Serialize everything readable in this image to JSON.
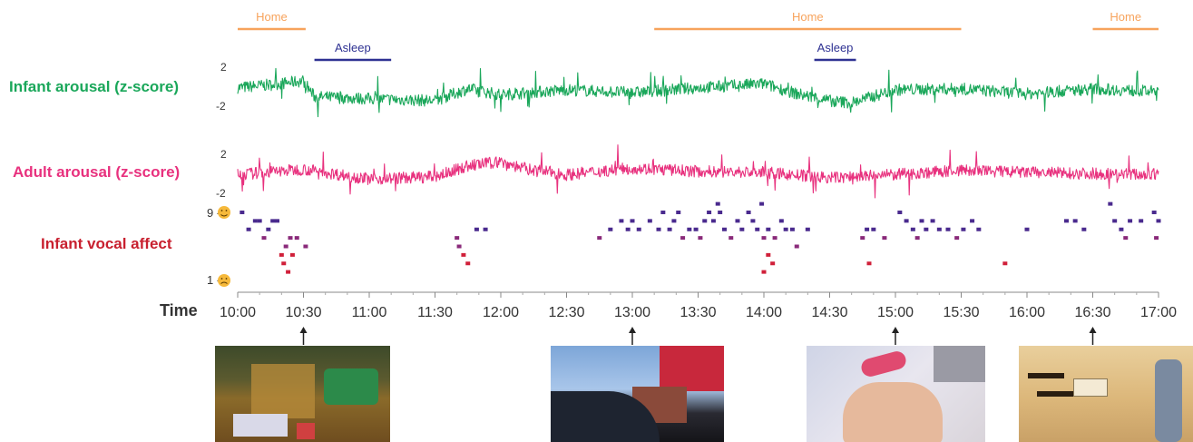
{
  "chart_data": {
    "type": "line",
    "x_range": [
      "10:00",
      "17:00"
    ],
    "xlabel": "Time",
    "x_ticks": [
      "10:00",
      "10:30",
      "11:00",
      "11:30",
      "12:00",
      "12:30",
      "13:00",
      "13:30",
      "14:00",
      "14:30",
      "15:00",
      "15:30",
      "16:00",
      "16:30",
      "17:00"
    ],
    "context_bars": [
      {
        "label": "Home",
        "start": "10:00",
        "end": "10:31",
        "color": "#f7a35c"
      },
      {
        "label": "Asleep",
        "start": "10:35",
        "end": "11:10",
        "color": "#2e3192"
      },
      {
        "label": "Home",
        "start": "13:10",
        "end": "15:30",
        "color": "#f7a35c"
      },
      {
        "label": "Asleep",
        "start": "14:23",
        "end": "14:42",
        "color": "#2e3192"
      },
      {
        "label": "Home",
        "start": "16:30",
        "end": "17:00",
        "color": "#f7a35c"
      }
    ],
    "series": [
      {
        "name": "Infant arousal (z-score)",
        "color": "#1aa75a",
        "y_ticks": [
          "2",
          "-2"
        ],
        "ylim": [
          -2,
          2
        ],
        "x": [
          "10:00",
          "10:15",
          "10:30",
          "10:35",
          "11:00",
          "11:30",
          "11:45",
          "12:00",
          "12:30",
          "13:00",
          "13:30",
          "14:00",
          "14:15",
          "14:30",
          "14:40",
          "15:00",
          "15:30",
          "16:00",
          "16:30",
          "17:00"
        ],
        "values": [
          0.3,
          0.6,
          1.0,
          -0.6,
          -0.8,
          -1.0,
          0.2,
          -0.4,
          0.1,
          -0.2,
          0.3,
          0.7,
          -0.3,
          -1.0,
          -1.2,
          0.1,
          0.2,
          -0.3,
          0.2,
          -0.1
        ]
      },
      {
        "name": "Adult arousal (z-score)",
        "color": "#e8317e",
        "y_ticks": [
          "2",
          "-2"
        ],
        "ylim": [
          -2,
          2
        ],
        "x": [
          "10:00",
          "10:30",
          "11:00",
          "11:30",
          "11:45",
          "12:00",
          "12:10",
          "12:30",
          "13:00",
          "13:30",
          "14:00",
          "14:30",
          "15:00",
          "15:30",
          "16:00",
          "16:30",
          "17:00"
        ],
        "values": [
          -0.2,
          0.3,
          -0.6,
          -0.4,
          0.6,
          1.0,
          0.4,
          -0.2,
          0.4,
          0.1,
          0.0,
          -0.5,
          -0.2,
          0.2,
          0.0,
          -0.1,
          -0.2
        ]
      }
    ],
    "vocal_affect": {
      "name": "Infant vocal affect",
      "y_ticks": [
        "9 -",
        "1 -"
      ],
      "ylim": [
        1,
        9
      ],
      "points": [
        {
          "t": "10:02",
          "v": 9
        },
        {
          "t": "10:05",
          "v": 7
        },
        {
          "t": "10:08",
          "v": 8
        },
        {
          "t": "10:10",
          "v": 8
        },
        {
          "t": "10:12",
          "v": 6
        },
        {
          "t": "10:14",
          "v": 7
        },
        {
          "t": "10:16",
          "v": 8
        },
        {
          "t": "10:18",
          "v": 8
        },
        {
          "t": "10:20",
          "v": 4
        },
        {
          "t": "10:22",
          "v": 5
        },
        {
          "t": "10:24",
          "v": 6
        },
        {
          "t": "10:27",
          "v": 6
        },
        {
          "t": "10:21",
          "v": 3
        },
        {
          "t": "10:23",
          "v": 2
        },
        {
          "t": "10:25",
          "v": 4
        },
        {
          "t": "10:31",
          "v": 5
        },
        {
          "t": "11:40",
          "v": 6
        },
        {
          "t": "11:41",
          "v": 5
        },
        {
          "t": "11:43",
          "v": 4
        },
        {
          "t": "11:45",
          "v": 3
        },
        {
          "t": "11:49",
          "v": 7
        },
        {
          "t": "11:53",
          "v": 7
        },
        {
          "t": "12:45",
          "v": 6
        },
        {
          "t": "12:50",
          "v": 7
        },
        {
          "t": "12:55",
          "v": 8
        },
        {
          "t": "12:58",
          "v": 7
        },
        {
          "t": "13:00",
          "v": 8
        },
        {
          "t": "13:03",
          "v": 7
        },
        {
          "t": "13:08",
          "v": 8
        },
        {
          "t": "13:12",
          "v": 7
        },
        {
          "t": "13:14",
          "v": 9
        },
        {
          "t": "13:17",
          "v": 7
        },
        {
          "t": "13:19",
          "v": 8
        },
        {
          "t": "13:21",
          "v": 9
        },
        {
          "t": "13:23",
          "v": 6
        },
        {
          "t": "13:26",
          "v": 7
        },
        {
          "t": "13:29",
          "v": 7
        },
        {
          "t": "13:31",
          "v": 6
        },
        {
          "t": "13:33",
          "v": 8
        },
        {
          "t": "13:35",
          "v": 9
        },
        {
          "t": "13:37",
          "v": 8
        },
        {
          "t": "13:39",
          "v": 10
        },
        {
          "t": "13:40",
          "v": 9
        },
        {
          "t": "13:42",
          "v": 7
        },
        {
          "t": "13:45",
          "v": 6
        },
        {
          "t": "13:48",
          "v": 8
        },
        {
          "t": "13:50",
          "v": 7
        },
        {
          "t": "13:53",
          "v": 9
        },
        {
          "t": "13:55",
          "v": 8
        },
        {
          "t": "13:57",
          "v": 7
        },
        {
          "t": "13:59",
          "v": 10
        },
        {
          "t": "14:00",
          "v": 6
        },
        {
          "t": "14:02",
          "v": 7
        },
        {
          "t": "14:05",
          "v": 6
        },
        {
          "t": "14:08",
          "v": 8
        },
        {
          "t": "14:10",
          "v": 7
        },
        {
          "t": "14:13",
          "v": 7
        },
        {
          "t": "14:15",
          "v": 5
        },
        {
          "t": "14:20",
          "v": 7
        },
        {
          "t": "14:00",
          "v": 2
        },
        {
          "t": "14:02",
          "v": 4
        },
        {
          "t": "14:04",
          "v": 3
        },
        {
          "t": "14:45",
          "v": 6
        },
        {
          "t": "14:47",
          "v": 7
        },
        {
          "t": "14:50",
          "v": 7
        },
        {
          "t": "14:48",
          "v": 3
        },
        {
          "t": "14:55",
          "v": 6
        },
        {
          "t": "15:02",
          "v": 9
        },
        {
          "t": "15:05",
          "v": 8
        },
        {
          "t": "15:08",
          "v": 7
        },
        {
          "t": "15:10",
          "v": 6
        },
        {
          "t": "15:12",
          "v": 8
        },
        {
          "t": "15:14",
          "v": 7
        },
        {
          "t": "15:17",
          "v": 8
        },
        {
          "t": "15:20",
          "v": 7
        },
        {
          "t": "15:24",
          "v": 7
        },
        {
          "t": "15:28",
          "v": 6
        },
        {
          "t": "15:31",
          "v": 7
        },
        {
          "t": "15:35",
          "v": 8
        },
        {
          "t": "15:38",
          "v": 7
        },
        {
          "t": "15:50",
          "v": 3
        },
        {
          "t": "16:00",
          "v": 7
        },
        {
          "t": "16:18",
          "v": 8
        },
        {
          "t": "16:22",
          "v": 8
        },
        {
          "t": "16:26",
          "v": 7
        },
        {
          "t": "16:38",
          "v": 10
        },
        {
          "t": "16:40",
          "v": 8
        },
        {
          "t": "16:43",
          "v": 7
        },
        {
          "t": "16:45",
          "v": 6
        },
        {
          "t": "16:47",
          "v": 8
        },
        {
          "t": "16:52",
          "v": 8
        },
        {
          "t": "16:58",
          "v": 9
        },
        {
          "t": "16:59",
          "v": 6
        },
        {
          "t": "17:00",
          "v": 8
        }
      ]
    },
    "photo_markers": [
      "10:30",
      "13:00",
      "15:00",
      "16:30"
    ]
  },
  "labels": {
    "infant_arousal": "Infant arousal (z-score)",
    "adult_arousal": "Adult arousal (z-score)",
    "infant_vocal_affect": "Infant vocal affect",
    "time": "Time",
    "tick_top": "2",
    "tick_bottom": "-2",
    "va_top": "9 -",
    "va_bottom": "1 -"
  },
  "colors": {
    "infant_green": "#1aa75a",
    "adult_pink": "#e8317e",
    "vocal_red": "#c8202f",
    "home_orange": "#f7a35c",
    "asleep_navy": "#2e3192",
    "vocal_purple": "#5a2c8a",
    "axis_gray": "#888888"
  }
}
